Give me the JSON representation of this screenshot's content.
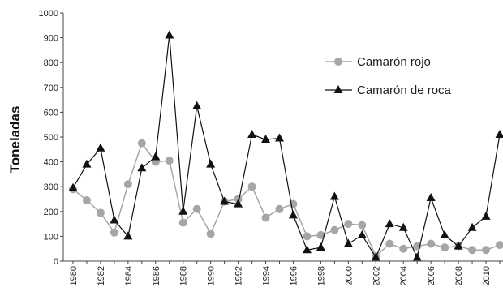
{
  "chart_data": {
    "type": "line",
    "ylabel": "Toneladas",
    "xlabel": "",
    "ylim": [
      0,
      1000
    ],
    "yticks": [
      0,
      100,
      200,
      300,
      400,
      500,
      600,
      700,
      800,
      900,
      1000
    ],
    "xticks": [
      1980,
      1982,
      1984,
      1986,
      1988,
      1990,
      1992,
      1994,
      1996,
      1998,
      2000,
      2002,
      2004,
      2006,
      2008,
      2010
    ],
    "xtick_labels": [
      "1980",
      "1982",
      "1984",
      "1986",
      "1988",
      "1990",
      "1992",
      "1994",
      "1996",
      "1998",
      "2000",
      "2002",
      "2004",
      "2006",
      "2008",
      "2010"
    ],
    "xlim": [
      1980,
      2011
    ],
    "grid": false,
    "legend_position": "top-right",
    "x": [
      1980,
      1981,
      1982,
      1983,
      1984,
      1985,
      1986,
      1987,
      1988,
      1989,
      1990,
      1991,
      1992,
      1993,
      1994,
      1995,
      1996,
      1997,
      1998,
      1999,
      2000,
      2001,
      2002,
      2003,
      2004,
      2005,
      2006,
      2007,
      2008,
      2009,
      2010,
      2011
    ],
    "series": [
      {
        "name": "Camarón rojo",
        "color": "#a6a6a6",
        "marker": "circle",
        "values": [
          290,
          245,
          195,
          115,
          310,
          475,
          400,
          405,
          155,
          210,
          110,
          240,
          250,
          300,
          175,
          210,
          230,
          100,
          105,
          125,
          150,
          145,
          20,
          70,
          50,
          60,
          70,
          55,
          60,
          45,
          45,
          65
        ]
      },
      {
        "name": "Camarón de roca",
        "color": "#111111",
        "marker": "triangle",
        "values": [
          295,
          390,
          455,
          165,
          100,
          375,
          420,
          910,
          200,
          625,
          390,
          240,
          230,
          510,
          490,
          495,
          185,
          45,
          55,
          260,
          70,
          105,
          15,
          150,
          135,
          15,
          255,
          105,
          60,
          135,
          180,
          510
        ]
      }
    ]
  }
}
